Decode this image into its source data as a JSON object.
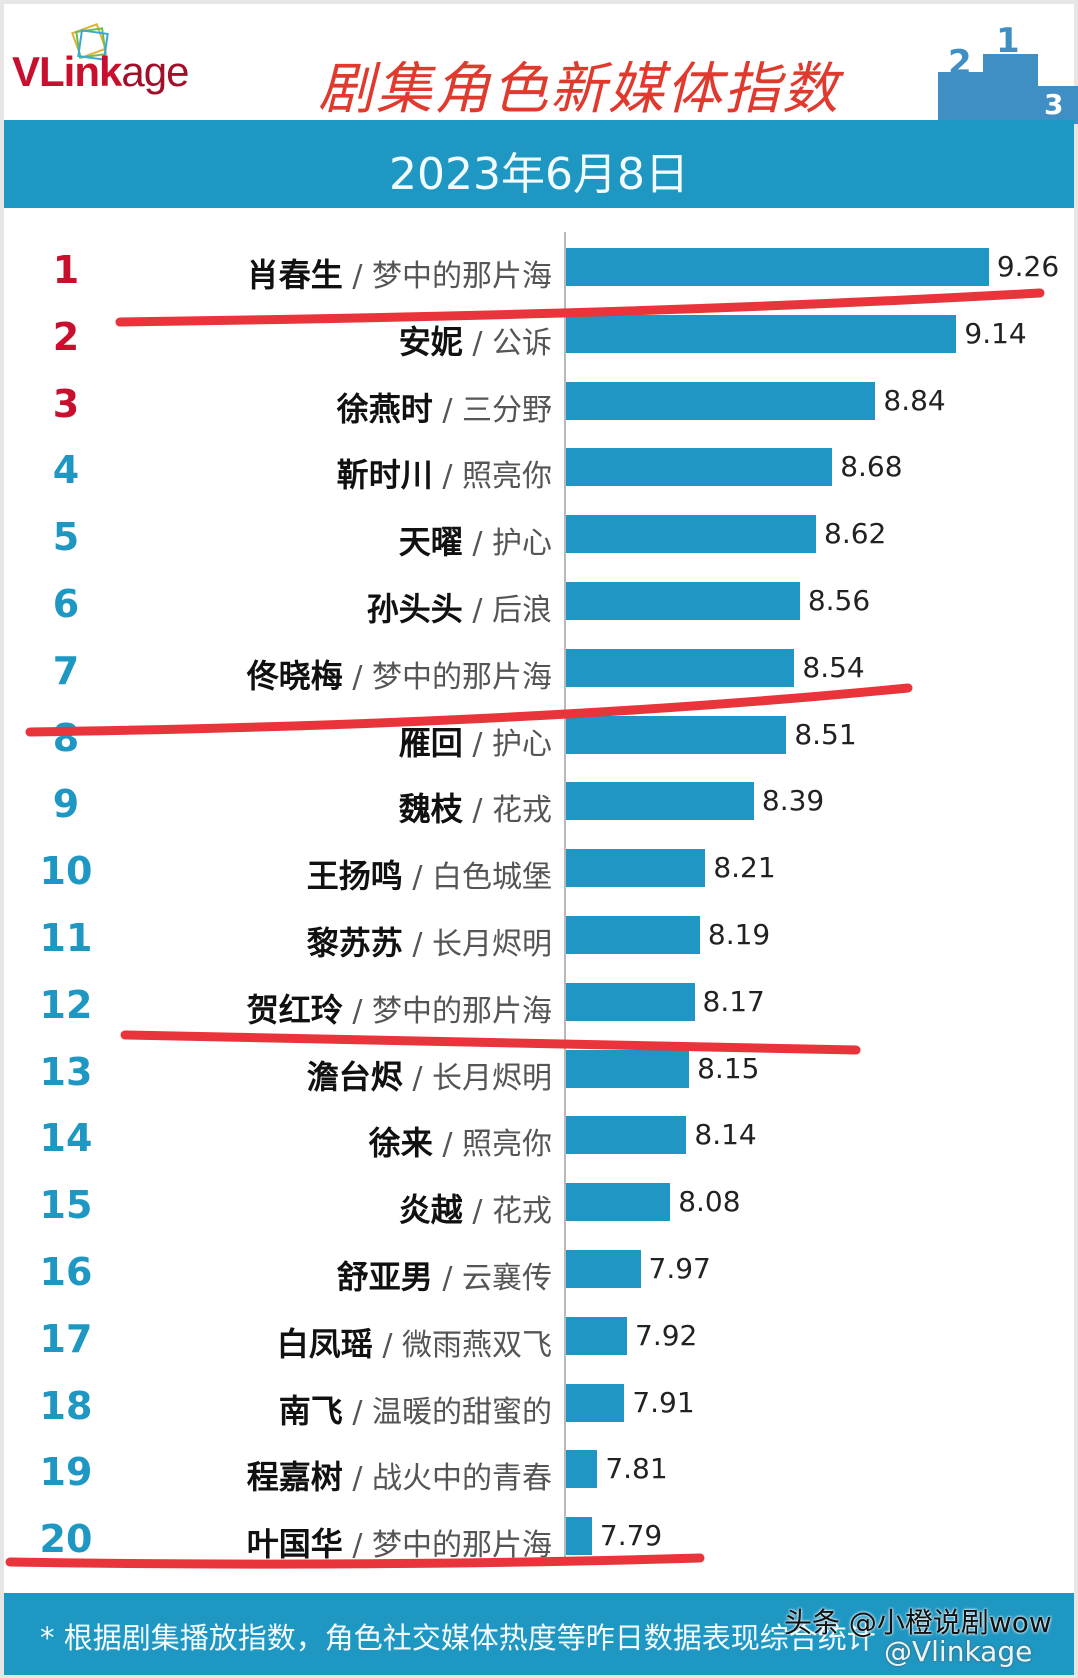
{
  "header": {
    "logo_text_a": "VLink",
    "logo_text_b": "age",
    "title": "剧集角色新媒体指数",
    "date": "2023年6月8日",
    "podium_icon": "podium-icon"
  },
  "footer": {
    "note": "* 根据剧集播放指数，角色社交媒体热度等昨日数据表现综合统计",
    "watermark": "头条 @小橙说剧wow",
    "watermark_2": "@Vlinkage"
  },
  "colors": {
    "bar": "#1f96c4",
    "band": "#1e97c3",
    "rank_top3": "#c8102e",
    "rank_rest": "#1e97c3",
    "title": "#e03a2e",
    "annotation": "#e8343a"
  },
  "chart_data": {
    "type": "bar",
    "orientation": "horizontal",
    "title": "剧集角色新媒体指数",
    "subtitle": "2023年6月8日",
    "grid": false,
    "rows": [
      {
        "rank": "1",
        "name": "肖春生",
        "show": "梦中的那片海",
        "value": 9.26
      },
      {
        "rank": "2",
        "name": "安妮",
        "show": "公诉",
        "value": 9.14
      },
      {
        "rank": "3",
        "name": "徐燕时",
        "show": "三分野",
        "value": 8.84
      },
      {
        "rank": "4",
        "name": "靳时川",
        "show": "照亮你",
        "value": 8.68
      },
      {
        "rank": "5",
        "name": "天曜",
        "show": "护心",
        "value": 8.62
      },
      {
        "rank": "6",
        "name": "孙头头",
        "show": "后浪",
        "value": 8.56
      },
      {
        "rank": "7",
        "name": "佟晓梅",
        "show": "梦中的那片海",
        "value": 8.54
      },
      {
        "rank": "8",
        "name": "雁回",
        "show": "护心",
        "value": 8.51
      },
      {
        "rank": "9",
        "name": "魏枝",
        "show": "花戎",
        "value": 8.39
      },
      {
        "rank": "10",
        "name": "王扬鸣",
        "show": "白色城堡",
        "value": 8.21
      },
      {
        "rank": "11",
        "name": "黎苏苏",
        "show": "长月烬明",
        "value": 8.19
      },
      {
        "rank": "12",
        "name": "贺红玲",
        "show": "梦中的那片海",
        "value": 8.17
      },
      {
        "rank": "13",
        "name": "澹台烬",
        "show": "长月烬明",
        "value": 8.15
      },
      {
        "rank": "14",
        "name": "徐来",
        "show": "照亮你",
        "value": 8.14
      },
      {
        "rank": "15",
        "name": "炎越",
        "show": "花戎",
        "value": 8.08
      },
      {
        "rank": "16",
        "name": "舒亚男",
        "show": "云襄传",
        "value": 7.97
      },
      {
        "rank": "17",
        "name": "白凤瑶",
        "show": "微雨燕双飞",
        "value": 7.92
      },
      {
        "rank": "18",
        "name": "南飞",
        "show": "温暖的甜蜜的",
        "value": 7.91
      },
      {
        "rank": "19",
        "name": "程嘉树",
        "show": "战火中的青春",
        "value": 7.81
      },
      {
        "rank": "20",
        "name": "叶国华",
        "show": "梦中的那片海",
        "value": 7.79
      }
    ],
    "annotations": "red hand-drawn underlines under ranks 1, 7, 12, 20"
  }
}
